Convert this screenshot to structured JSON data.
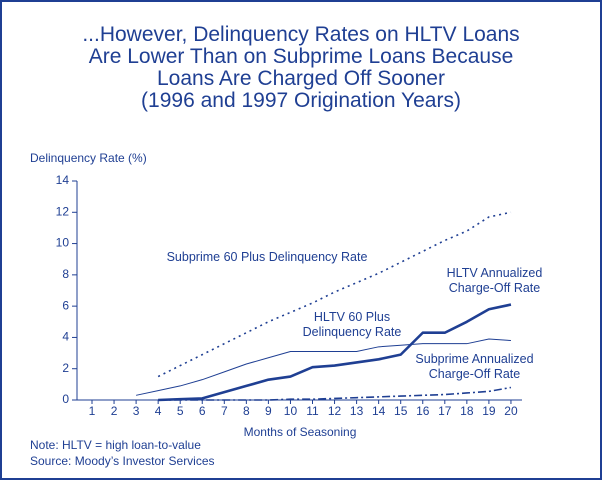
{
  "chart_data": {
    "type": "line",
    "title": [
      "...However, Delinquency Rates on HLTV Loans",
      "Are Lower Than on Subprime Loans Because",
      "Loans Are Charged Off Sooner",
      "(1996 and 1997 Origination Years)"
    ],
    "y_label": "Delinquency Rate (%)",
    "x_label": "Months of Seasoning",
    "categories": [
      "1",
      "2",
      "3",
      "4",
      "5",
      "6",
      "7",
      "8",
      "9",
      "10",
      "11",
      "12",
      "13",
      "14",
      "15",
      "16",
      "17",
      "18",
      "19",
      "20"
    ],
    "ylim": [
      0,
      14
    ],
    "yticks": [
      0,
      2,
      4,
      6,
      8,
      10,
      12,
      14
    ],
    "series": [
      {
        "name": "Subprime 60 Plus Delinquency Rate",
        "color": "#1f3f93",
        "style": "dotted",
        "values": [
          null,
          null,
          null,
          1.5,
          2.2,
          2.9,
          3.6,
          4.3,
          5.0,
          5.6,
          6.2,
          6.9,
          7.5,
          8.1,
          8.8,
          9.5,
          10.2,
          10.8,
          11.7,
          12.0
        ]
      },
      {
        "name": "HLTV Annualized Charge-Off Rate",
        "color": "#1f3f93",
        "style": "thick",
        "values": [
          null,
          null,
          null,
          0,
          0.05,
          0.1,
          0.5,
          0.9,
          1.3,
          1.5,
          2.1,
          2.2,
          2.4,
          2.6,
          2.9,
          4.3,
          4.3,
          5.0,
          5.8,
          6.1
        ]
      },
      {
        "name": "HLTV 60 Plus Delinquency Rate",
        "color": "#1f3f93",
        "style": "thin",
        "values": [
          null,
          null,
          0.3,
          0.6,
          0.9,
          1.3,
          1.8,
          2.3,
          2.7,
          3.1,
          3.1,
          3.1,
          3.1,
          3.4,
          3.5,
          3.6,
          3.6,
          3.6,
          3.9,
          3.8
        ]
      },
      {
        "name": "Subprime Annualized Charge-Off Rate",
        "color": "#1f3f93",
        "style": "dashdot",
        "values": [
          null,
          null,
          null,
          0,
          0,
          0,
          0,
          0,
          0,
          0.05,
          0.05,
          0.1,
          0.15,
          0.2,
          0.25,
          0.3,
          0.35,
          0.45,
          0.55,
          0.8
        ]
      }
    ],
    "notes": [
      "Note: HLTV = high loan-to-value",
      "Source: Moody’s Investor Services"
    ]
  }
}
